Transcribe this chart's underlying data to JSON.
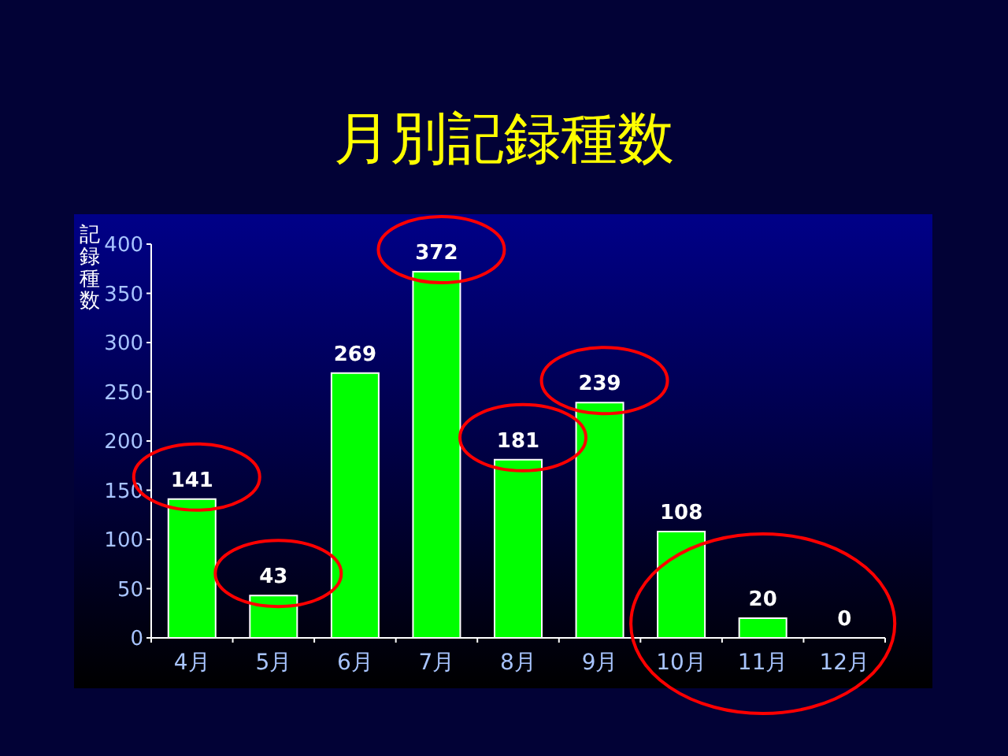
{
  "chart_data": {
    "type": "bar",
    "title": "月別記録種数",
    "ylabel": "記録種数",
    "categories": [
      "4月",
      "5月",
      "6月",
      "7月",
      "8月",
      "9月",
      "10月",
      "11月",
      "12月"
    ],
    "values": [
      141,
      43,
      269,
      372,
      181,
      239,
      108,
      20,
      0
    ],
    "color": "#00ff00",
    "ylim": [
      0,
      400
    ],
    "yticks": [
      0,
      50,
      100,
      150,
      200,
      250,
      300,
      350,
      400
    ],
    "data_labels": true
  }
}
